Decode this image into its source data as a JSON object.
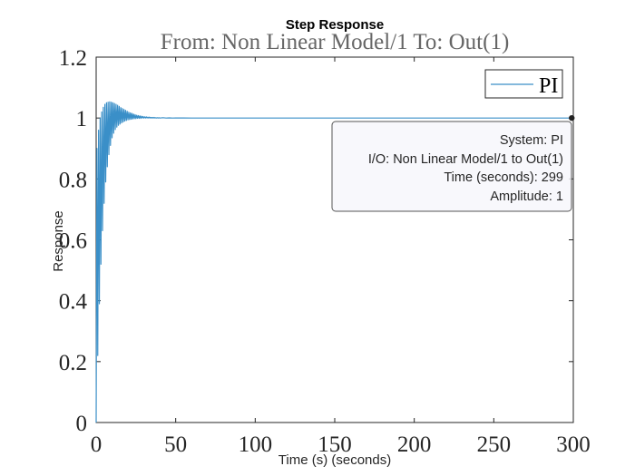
{
  "chart_data": {
    "type": "line",
    "title": "Step Response",
    "subtitle": "From: Non Linear Model/1  To: Out(1)",
    "xlabel": "Time (s) (seconds)",
    "ylabel": "Response",
    "xlim": [
      0,
      300
    ],
    "ylim": [
      0,
      1.2
    ],
    "xticks": [
      "0",
      "50",
      "100",
      "150",
      "200",
      "250",
      "300"
    ],
    "yticks": [
      "0",
      "0.2",
      "0.4",
      "0.6",
      "0.8",
      "1",
      "1.2"
    ],
    "grid": false,
    "legend_position": "top-right",
    "series": [
      {
        "name": "PI",
        "color": "#3a8fc8",
        "x": [
          0,
          0.5,
          1.0,
          1.5,
          2.0,
          2.5,
          3.0,
          3.5,
          4.0,
          4.5,
          5.0,
          5.5,
          6.0,
          6.5,
          7.0,
          7.5,
          8.0,
          8.5,
          9.0,
          9.5,
          10.0,
          10.5,
          11.0,
          11.5,
          12.0,
          12.5,
          13.0,
          13.5,
          14.0,
          14.5,
          15.0,
          15.5,
          16.0,
          16.5,
          17.0,
          17.5,
          18.0,
          18.5,
          19.0,
          19.5,
          20.0,
          20.5,
          21.0,
          21.5,
          22.0,
          22.5,
          23.0,
          23.5,
          24.0,
          24.5,
          25.0,
          25.5,
          26.0,
          26.5,
          27.0,
          27.5,
          28.0,
          28.5,
          29.0,
          29.5,
          30.0,
          30.5,
          31.0,
          31.5,
          32.0,
          32.5,
          33.0,
          33.5,
          34.0,
          34.5,
          35.0,
          35.5,
          36.0,
          36.5,
          37.0,
          37.5,
          38.0,
          38.5,
          39.0,
          39.5,
          40.0,
          42,
          44,
          46,
          48,
          50,
          55,
          60,
          70,
          80,
          100,
          150,
          200,
          250,
          299
        ],
        "y": [
          0,
          0.9,
          0.22,
          0.96,
          0.39,
          1.0,
          0.52,
          1.02,
          0.63,
          1.035,
          0.72,
          1.045,
          0.79,
          1.05,
          0.84,
          1.052,
          0.88,
          1.053,
          0.91,
          1.052,
          0.935,
          1.05,
          0.95,
          1.048,
          0.962,
          1.045,
          0.97,
          1.042,
          0.976,
          1.038,
          0.98,
          1.034,
          0.984,
          1.031,
          0.987,
          1.028,
          0.99,
          1.025,
          0.992,
          1.022,
          0.994,
          1.019,
          0.995,
          1.017,
          0.996,
          1.015,
          0.997,
          1.013,
          0.998,
          1.011,
          0.998,
          1.009,
          0.999,
          1.008,
          0.999,
          1.007,
          0.999,
          1.006,
          1.0,
          1.005,
          1.0,
          1.004,
          1.0,
          1.004,
          1.0,
          1.003,
          1.0,
          1.003,
          1.0,
          1.002,
          1.0,
          1.002,
          1.0,
          1.002,
          1.0,
          1.001,
          1.0,
          1.001,
          1.0,
          1.001,
          1.0,
          1.001,
          1.0,
          1.0005,
          1.0,
          1.0003,
          1.0001,
          1.0,
          1.0,
          1.0,
          1.0,
          1.0,
          1.0,
          1.0,
          1.0
        ]
      }
    ],
    "datatip": {
      "x": 299,
      "y": 1,
      "lines": [
        "System: PI",
        "I/O: Non Linear Model/1 to Out(1)",
        "Time (seconds): 299",
        "Amplitude: 1"
      ]
    }
  }
}
